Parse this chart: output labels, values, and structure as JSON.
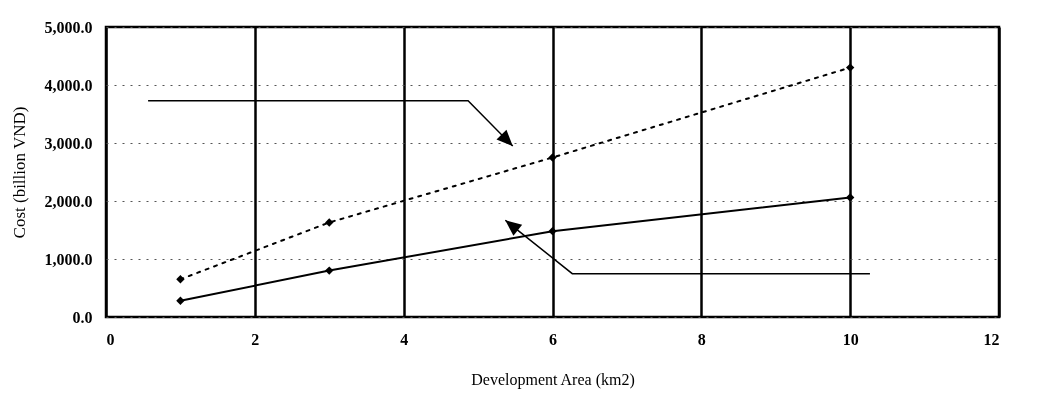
{
  "chart_data": {
    "type": "line",
    "xlabel": "Development Area (km2)",
    "ylabel": "Cost (billion VND)",
    "x": [
      1,
      3,
      6,
      10
    ],
    "series": [
      {
        "color": "#000000",
        "values": [
          650,
          1630,
          2750,
          4300
        ],
        "line_style": "dotted"
      },
      {
        "color": "#000000",
        "values": [
          280,
          800,
          1480,
          2060
        ],
        "line_style": "solid"
      }
    ],
    "xlim": [
      0,
      12
    ],
    "xticks": [
      0,
      2,
      4,
      6,
      8,
      10,
      12
    ],
    "ylim": [
      0,
      5000
    ],
    "yticks": [
      {
        "value": 0,
        "label": "0.0"
      },
      {
        "value": 1000,
        "label": "1,000.0"
      },
      {
        "value": 2000,
        "label": "2,000.0"
      },
      {
        "value": 3000,
        "label": "3,000.0"
      },
      {
        "value": 4000,
        "label": "4,000.0"
      },
      {
        "value": 5000,
        "label": "5,000.0"
      }
    ],
    "grid": true,
    "marker": "diamond"
  }
}
